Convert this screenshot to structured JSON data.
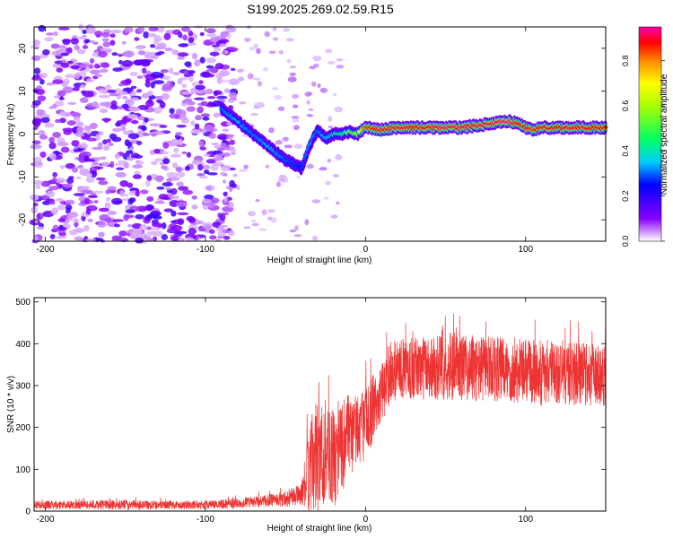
{
  "page": {
    "title": "S199.2025.269.02.59.R15"
  },
  "colorbar": {
    "label": "Normalized spectral amplitude",
    "ticks": [
      "0.0",
      "0.2",
      "0.4",
      "0.6",
      "0.8"
    ],
    "tick_values": [
      0.0,
      0.2,
      0.4,
      0.6,
      0.8
    ],
    "range": [
      0.0,
      0.95
    ],
    "stops": [
      {
        "v": 0.0,
        "color": "#ffffff"
      },
      {
        "v": 0.1,
        "color": "#8800ff"
      },
      {
        "v": 0.25,
        "color": "#0000ff"
      },
      {
        "v": 0.35,
        "color": "#00ccff"
      },
      {
        "v": 0.45,
        "color": "#00ff66"
      },
      {
        "v": 0.6,
        "color": "#aaff00"
      },
      {
        "v": 0.7,
        "color": "#ffff00"
      },
      {
        "v": 0.8,
        "color": "#ff8800"
      },
      {
        "v": 0.88,
        "color": "#ff0000"
      },
      {
        "v": 0.95,
        "color": "#ff00aa"
      }
    ]
  },
  "chart_data": [
    {
      "type": "heatmap",
      "title": "S199.2025.269.02.59.R15",
      "xlabel": "Height of straight line (km)",
      "ylabel": "Frequency (Hz)",
      "xlim": [
        -207,
        150
      ],
      "ylim": [
        -25,
        25
      ],
      "xticks": [
        "-200",
        "-100",
        "0",
        "100"
      ],
      "xtick_values": [
        -200,
        -100,
        0,
        100
      ],
      "yticks": [
        "20",
        "10",
        "0",
        "-10",
        "-20"
      ],
      "ytick_values": [
        20,
        10,
        0,
        -10,
        -20
      ],
      "noise_region_x": [
        -207,
        -90
      ],
      "signal_track": {
        "x": [
          -90,
          -80,
          -70,
          -60,
          -50,
          -40,
          -35,
          -30,
          -25,
          -20,
          -15,
          -10,
          -5,
          0,
          10,
          20,
          30,
          40,
          50,
          60,
          70,
          80,
          90,
          95,
          100,
          105,
          110,
          120,
          130,
          140,
          150
        ],
        "freq": [
          6,
          3,
          0,
          -3,
          -6,
          -8,
          -3,
          1,
          -1,
          0,
          0,
          0.5,
          0,
          1.5,
          1,
          1.5,
          1.5,
          1.5,
          1.5,
          1.5,
          2,
          2.5,
          3,
          2.5,
          1.5,
          1,
          1.5,
          1.5,
          1.5,
          1.5,
          1.5
        ],
        "amplitude": [
          0.3,
          0.35,
          0.3,
          0.35,
          0.3,
          0.25,
          0.35,
          0.3,
          0.35,
          0.4,
          0.45,
          0.55,
          0.6,
          0.85,
          0.9,
          0.9,
          0.88,
          0.9,
          0.92,
          0.9,
          0.9,
          0.92,
          0.95,
          0.88,
          0.9,
          0.85,
          0.9,
          0.88,
          0.9,
          0.88,
          0.88
        ]
      }
    },
    {
      "type": "line",
      "xlabel": "Height of straight line (km)",
      "ylabel": "SNR (10 * v/v)",
      "xlim": [
        -207,
        150
      ],
      "ylim": [
        0,
        510
      ],
      "xticks": [
        "-200",
        "-100",
        "0",
        "100"
      ],
      "xtick_values": [
        -200,
        -100,
        0,
        100
      ],
      "yticks": [
        "500",
        "400",
        "300",
        "200",
        "100",
        "0"
      ],
      "ytick_values": [
        500,
        400,
        300,
        200,
        100,
        0
      ],
      "color": "#ee3333",
      "series": [
        {
          "name": "SNR",
          "x": [
            -207,
            -180,
            -150,
            -120,
            -100,
            -80,
            -60,
            -50,
            -40,
            -35,
            -30,
            -25,
            -20,
            -15,
            -10,
            -5,
            0,
            5,
            10,
            15,
            20,
            30,
            40,
            50,
            60,
            70,
            80,
            90,
            100,
            110,
            120,
            130,
            140,
            150
          ],
          "mean": [
            15,
            15,
            15,
            15,
            15,
            18,
            25,
            30,
            40,
            100,
            130,
            140,
            120,
            160,
            170,
            200,
            210,
            250,
            280,
            320,
            340,
            340,
            345,
            350,
            345,
            340,
            340,
            335,
            335,
            330,
            330,
            330,
            325,
            325
          ],
          "spread": [
            10,
            10,
            12,
            10,
            10,
            12,
            15,
            20,
            25,
            110,
            150,
            120,
            120,
            110,
            110,
            90,
            90,
            80,
            70,
            70,
            70,
            75,
            80,
            85,
            80,
            80,
            80,
            80,
            80,
            80,
            80,
            80,
            75,
            75
          ]
        }
      ]
    }
  ]
}
